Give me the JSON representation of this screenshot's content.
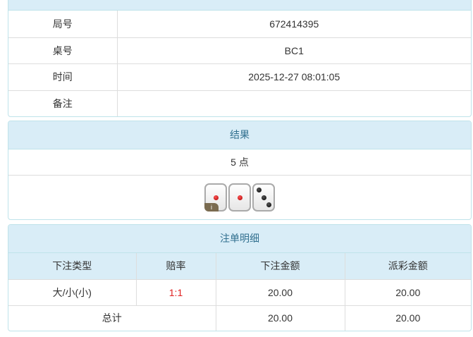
{
  "info": {
    "rows": [
      {
        "label": "局号",
        "value": "672414395"
      },
      {
        "label": "桌号",
        "value": "BC1"
      },
      {
        "label": "时间",
        "value": "2025-12-27 08:01:05"
      },
      {
        "label": "备注",
        "value": ""
      }
    ]
  },
  "result": {
    "title": "结果",
    "points": "5 点",
    "dice": [
      1,
      1,
      3
    ],
    "info_badge": "i"
  },
  "bets": {
    "title": "注单明细",
    "columns": [
      "下注类型",
      "赔率",
      "下注金额",
      "派彩金额"
    ],
    "rows": [
      {
        "type": "大/小(小)",
        "odds": "1:1",
        "amount": "20.00",
        "payout": "20.00"
      }
    ],
    "total": {
      "label": "总计",
      "amount": "20.00",
      "payout": "20.00"
    },
    "odds_color": "#e02020"
  }
}
